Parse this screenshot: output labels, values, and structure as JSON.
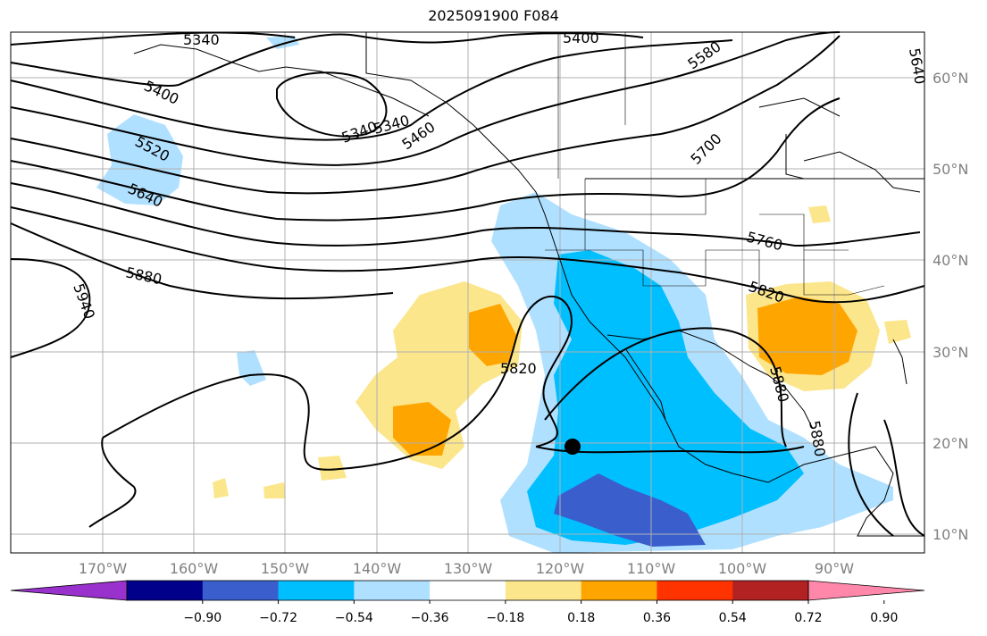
{
  "title": "2025091900 F084",
  "map": {
    "lat_labels": [
      "60°N",
      "50°N",
      "40°N",
      "30°N",
      "20°N",
      "10°N"
    ],
    "lon_labels": [
      "170°W",
      "160°W",
      "150°W",
      "140°W",
      "130°W",
      "120°W",
      "110°W",
      "100°W",
      "90°W"
    ],
    "contour_labels": [
      "5340",
      "5400",
      "5340",
      "5400",
      "5580",
      "5640",
      "5520",
      "5640",
      "5460",
      "5340",
      "5700",
      "5760",
      "5880",
      "5940",
      "5820",
      "5820",
      "5880",
      "5880"
    ],
    "marker": "storm-center-dot"
  },
  "colorbar": {
    "ticks": [
      "−0.90",
      "−0.72",
      "−0.54",
      "−0.36",
      "−0.18",
      "0.18",
      "0.36",
      "0.54",
      "0.72",
      "0.90"
    ],
    "colors": [
      "#9932cc",
      "#00008b",
      "#3a5fcd",
      "#00bfff",
      "#b0e0ff",
      "#ffffff",
      "#fce68c",
      "#ffa500",
      "#ff3300",
      "#b22222",
      "#ff88aa"
    ]
  }
}
